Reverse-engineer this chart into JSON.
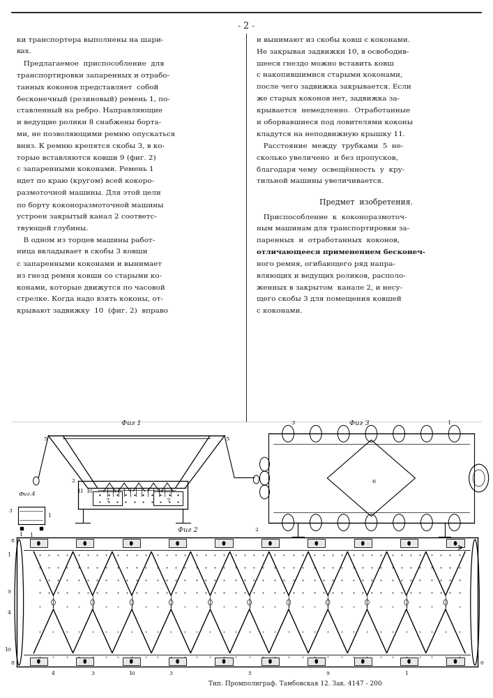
{
  "background_color": "#ffffff",
  "page_number": "- 2 -",
  "left_column_text": [
    "ки транспортера выполнены на шари-",
    "ках.",
    "   Предлагаемое  приспособление  для",
    "транспортировки запаренных и отрабо-",
    "танных коконов представляет  собой",
    "бесконечный (резиновый) ремень 1, по-",
    "ставленный на ребро. Направляющие",
    "и ведущие ролики 8 снабжены борта-",
    "ми, не позволяющими ремню опускаться",
    "вниз. К ремню крепятся скобы 3, в ко-",
    "торые вставляются ковши 9 (фиг. 2)",
    "с запаренными коконами. Ремень 1",
    "идет по краю (кругом) всей кокоро-",
    "размоточной машины. Для этой цели",
    "по борту коконоразмоточной машины",
    "устроен закрытый канал 2 соответс-",
    "твующей глубины.",
    "   В одном из торцев машины работ-",
    "ница вкладывает в скобы 3 ковши",
    "с запаренными коконами и вынимает",
    "из гнезд ремня ковши со старыми ко-",
    "конами, которые движутся по часовой",
    "стрелке. Когда надо взять коконы, от-",
    "крывают задвижку  10  (фиг. 2)  вправо"
  ],
  "right_column_text": [
    "и вынимают из скобы ковш с коконами.",
    "Не закрывая задвижки 10, в освободив-",
    "шееся гнездо можно вставить ковш",
    "с накопившимися старыми коконами,",
    "после чего задвижка закрывается. Если",
    "же старых коконов нет, задвижка за-",
    "крывается  немедленно.  Отработанные",
    "и оборвавшиеся под ловителями коконы",
    "кладутся на неподвижную крышку 11.",
    "   Расстояние  между  трубками  5  не-",
    "сколько увеличено  и без пропусков,",
    "благодаря чему  освещённость  у  кру-",
    "тильной машины увеличивается."
  ],
  "subject_header": "Предмет  изобретения.",
  "subject_text_plain": [
    "   Приспособление  к  коконоразмоточ-",
    "ным машинам для транспортировки за-",
    "паренных  и  отработанных  коконов,"
  ],
  "subject_text_bold_line": "отличающееся применением бесконеч-",
  "subject_text_after": [
    "ного ремня, огибающего ряд напра-",
    "вляющих и ведущих роликов, располо-",
    "женных в закрытом  канале 2, и несу-",
    "щего скобы 3 для помещения ковшей",
    "с коконами."
  ],
  "footer_text": "Тип. Промполиграф. Тамбовская 12. Зак. 4147 - 200",
  "text_color": "#1a1a1a",
  "line_color": "#000000",
  "font_size_body": 7.5,
  "font_size_footer": 6.5,
  "font_size_page_num": 9.0,
  "fig_width": 7.07,
  "fig_height": 10.0
}
